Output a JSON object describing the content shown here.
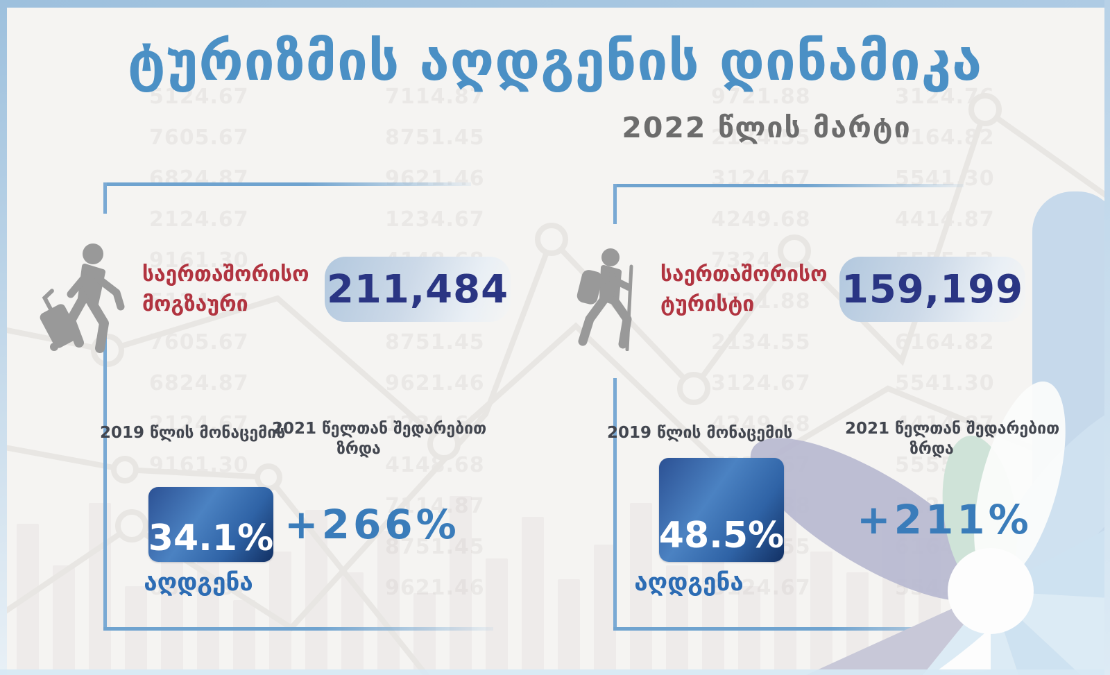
{
  "title": "ტურიზმის აღდგენის დინამიკა",
  "subtitle": "2022 წლის მარტი",
  "colors": {
    "title_blue": "#4b90c5",
    "subtitle_gray": "#6c6c6c",
    "label_red": "#b13440",
    "value_navy": "#2a3583",
    "growth_blue": "#3a7cba",
    "recovery_blue": "#2c6cb4",
    "panel_border_blue": "#79a9d4",
    "pct_box_gradient": [
      "#2c5194",
      "#4b82c2",
      "#123063"
    ],
    "value_box_gradient": [
      "#b2c8de",
      "#e9eff5"
    ],
    "frame_blue": "#9dc0dd",
    "icon_gray": "#999999"
  },
  "panels": [
    {
      "icon": "traveler-luggage-icon",
      "label_line1": "საერთაშორისო",
      "label_line2": "მოგზაური",
      "value": "211,484",
      "caption_2019": "2019 წლის მონაცემის",
      "growth_caption_line1": "2021 წელთან შედარებით",
      "growth_caption_line2": "ზრდა",
      "recovery_percent": "34.1%",
      "recovery_label": "აღდგენა",
      "growth_percent": "+266%"
    },
    {
      "icon": "hiker-icon",
      "label_line1": "საერთაშორისო",
      "label_line2": "ტურისტი",
      "value": "159,199",
      "caption_2019": "2019 წლის მონაცემის",
      "growth_caption_line1": "2021 წელთან შედარებით",
      "growth_caption_line2": "ზრდა",
      "recovery_percent": "48.5%",
      "recovery_label": "აღდგენა",
      "growth_percent": "+211%"
    }
  ],
  "chart_data": {
    "type": "table",
    "title": "ტურიზმის აღდგენის დინამიკა",
    "subtitle": "2022 წლის მარტი",
    "columns": [
      "category",
      "arrivals_march_2022",
      "recovery_of_2019_pct",
      "growth_vs_2021_pct"
    ],
    "rows": [
      {
        "category": "საერთაშორისო მოგზაური",
        "arrivals_march_2022": 211484,
        "recovery_of_2019_pct": 34.1,
        "growth_vs_2021_pct": 266
      },
      {
        "category": "საერთაშორისო ტურისტი",
        "arrivals_march_2022": 159199,
        "recovery_of_2019_pct": 48.5,
        "growth_vs_2021_pct": 211
      }
    ]
  },
  "background": {
    "watermark_numbers": [
      "5124.67",
      "7114.87",
      "9721.88",
      "3124.76",
      "7605.67",
      "8751.45",
      "2134.55",
      "6164.82",
      "6824.87",
      "9621.46",
      "3124.67",
      "5541.30",
      "2124.67",
      "1234.67",
      "4249.68",
      "4414.87",
      "9161.30",
      "4148.68",
      "7324.67",
      "5555.53"
    ]
  }
}
